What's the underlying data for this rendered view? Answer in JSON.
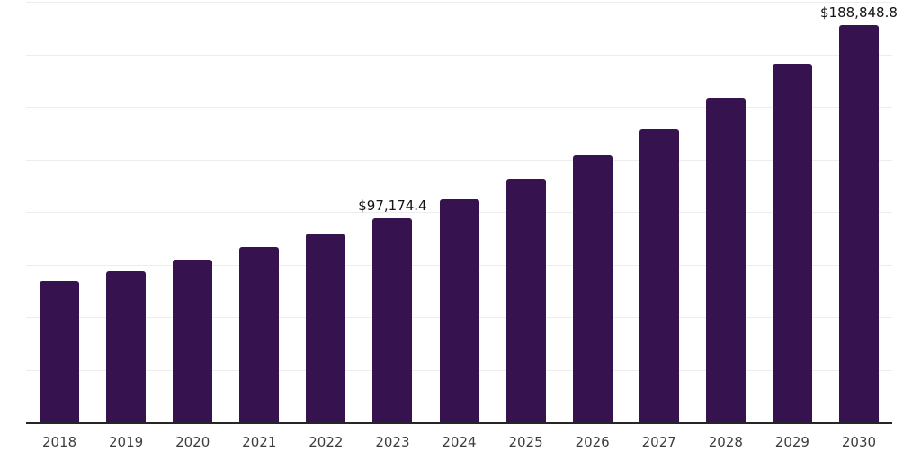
{
  "chart_data": {
    "type": "bar",
    "title": "",
    "xlabel": "",
    "ylabel": "",
    "categories": [
      "2018",
      "2019",
      "2020",
      "2021",
      "2022",
      "2023",
      "2024",
      "2025",
      "2026",
      "2027",
      "2028",
      "2029",
      "2030"
    ],
    "values": [
      67300,
      72000,
      77400,
      83400,
      89800,
      97174.4,
      106100,
      115700,
      127100,
      139400,
      154300,
      170600,
      188848.8
    ],
    "data_labels": [
      null,
      null,
      null,
      null,
      null,
      "$97,174.4",
      null,
      null,
      null,
      null,
      null,
      null,
      "$188,848.8"
    ],
    "ylim": [
      0,
      200000
    ],
    "ytick_interval": 25000,
    "grid": true,
    "y_axis_labels_shown": false,
    "legend": "none",
    "colors": {
      "bar": "#36124f",
      "grid": "#ededed",
      "axis_line": "#262626",
      "tick_label": "#3d3d3d",
      "data_label": "#141414",
      "background": "#ffffff"
    }
  }
}
